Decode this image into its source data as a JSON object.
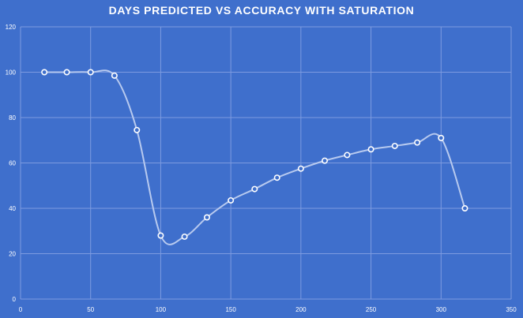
{
  "chart_data": {
    "type": "scatter",
    "title": "DAYS PREDICTED VS ACCURACY WITH SATURATION",
    "smooth": true,
    "xlim": [
      0,
      350
    ],
    "ylim": [
      0,
      120
    ],
    "xticks": [
      0,
      50,
      100,
      150,
      200,
      250,
      300,
      350
    ],
    "yticks": [
      0,
      20,
      40,
      60,
      80,
      100,
      120
    ],
    "grid": true,
    "legend": "none",
    "colors": {
      "background": "#3f6fcc",
      "grid": "#7d9be0",
      "line": "#b8caef",
      "marker_fill": "#3f6fcc",
      "marker_stroke": "#ffffff",
      "text": "#ffffff"
    },
    "series": [
      {
        "x": [
          17,
          33,
          50,
          67,
          83,
          100,
          117,
          133,
          150,
          167,
          183,
          200,
          217,
          233,
          250,
          267,
          283,
          300,
          317
        ],
        "y": [
          100,
          100,
          100,
          98.5,
          74.5,
          28,
          27.5,
          36,
          43.5,
          48.5,
          53.5,
          57.5,
          61,
          63.5,
          66,
          67.5,
          69,
          71,
          40
        ]
      }
    ]
  }
}
